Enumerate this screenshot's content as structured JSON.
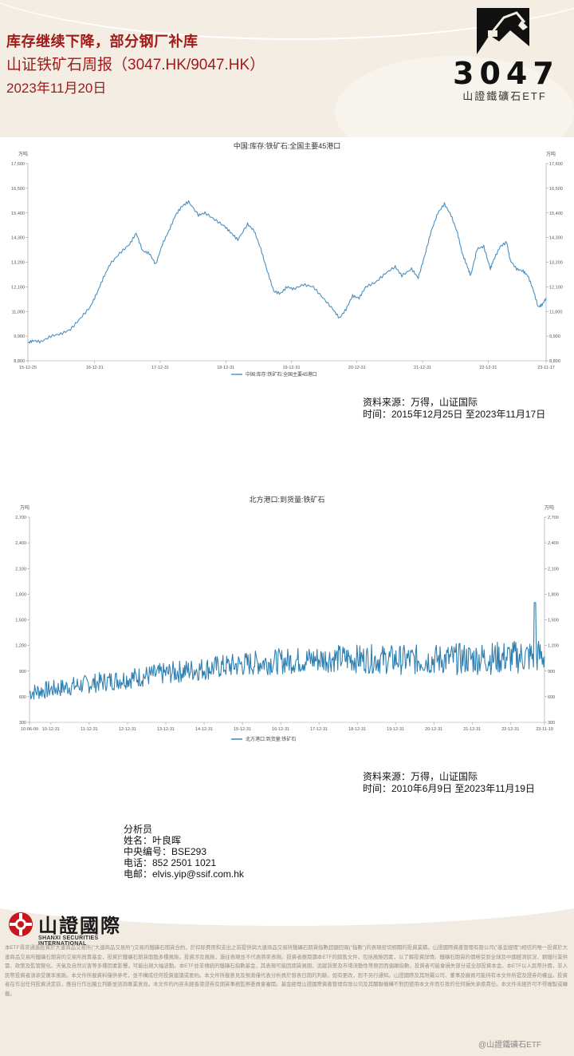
{
  "header": {
    "title": "库存继续下降，部分钢厂补库",
    "subtitle": "山证铁矿石周报（3047.HK/9047.HK）",
    "date": "2023年11月20日",
    "logo_code": "3047",
    "logo_name": "山證鐵礦石ETF"
  },
  "chart_data": [
    {
      "type": "line",
      "title": "中国:库存:铁矿石:全国主要45港口",
      "unit": "万吨",
      "legend": "中国:库存:铁矿石:全国主要45港口",
      "legend_position": "bottom",
      "grid": false,
      "color": "#4a90c2",
      "ylim": [
        8800,
        17600
      ],
      "yticks": [
        "8,800",
        "9,900",
        "11,000",
        "12,100",
        "13,200",
        "14,300",
        "15,400",
        "16,500",
        "17,600"
      ],
      "yticks_right": [
        "8,800",
        "9,900",
        "11,000",
        "12,100",
        "13,200",
        "14,300",
        "15,400",
        "16,500",
        "17,600"
      ],
      "xticks": [
        "15-12-25",
        "16-12-31",
        "17-12-31",
        "18-12-31",
        "19-12-31",
        "20-12-31",
        "21-12-31",
        "22-12-31",
        "23-11-17"
      ],
      "x_tick_positions": [
        0,
        1.017,
        2.017,
        3.017,
        4.017,
        5.017,
        6.017,
        7.017,
        7.9
      ],
      "x_range": [
        0,
        7.9
      ],
      "series": [
        {
          "values": [
            [
              0.0,
              9600
            ],
            [
              0.08,
              9700
            ],
            [
              0.2,
              9650
            ],
            [
              0.35,
              9900
            ],
            [
              0.5,
              10000
            ],
            [
              0.65,
              10200
            ],
            [
              0.8,
              10700
            ],
            [
              0.95,
              11200
            ],
            [
              1.05,
              11800
            ],
            [
              1.15,
              12500
            ],
            [
              1.25,
              13100
            ],
            [
              1.4,
              13600
            ],
            [
              1.55,
              14000
            ],
            [
              1.65,
              14500
            ],
            [
              1.75,
              13700
            ],
            [
              1.85,
              13600
            ],
            [
              1.95,
              13100
            ],
            [
              2.05,
              14000
            ],
            [
              2.15,
              14600
            ],
            [
              2.25,
              15300
            ],
            [
              2.35,
              15700
            ],
            [
              2.45,
              15900
            ],
            [
              2.6,
              15300
            ],
            [
              2.7,
              15400
            ],
            [
              2.85,
              15100
            ],
            [
              3.0,
              14800
            ],
            [
              3.1,
              14500
            ],
            [
              3.2,
              14200
            ],
            [
              3.35,
              14900
            ],
            [
              3.45,
              14600
            ],
            [
              3.55,
              13800
            ],
            [
              3.65,
              12800
            ],
            [
              3.75,
              11900
            ],
            [
              3.85,
              11800
            ],
            [
              3.95,
              12100
            ],
            [
              4.05,
              12000
            ],
            [
              4.2,
              12200
            ],
            [
              4.35,
              12100
            ],
            [
              4.5,
              11600
            ],
            [
              4.65,
              11100
            ],
            [
              4.75,
              10700
            ],
            [
              4.85,
              11100
            ],
            [
              4.95,
              11700
            ],
            [
              5.05,
              11600
            ],
            [
              5.15,
              12100
            ],
            [
              5.3,
              12300
            ],
            [
              5.45,
              12700
            ],
            [
              5.6,
              13000
            ],
            [
              5.7,
              12600
            ],
            [
              5.85,
              12900
            ],
            [
              5.95,
              12500
            ],
            [
              6.05,
              13500
            ],
            [
              6.15,
              14600
            ],
            [
              6.25,
              15400
            ],
            [
              6.35,
              15800
            ],
            [
              6.45,
              15300
            ],
            [
              6.55,
              14500
            ],
            [
              6.62,
              13600
            ],
            [
              6.7,
              13000
            ],
            [
              6.75,
              12600
            ],
            [
              6.85,
              13800
            ],
            [
              6.95,
              13900
            ],
            [
              7.05,
              12900
            ],
            [
              7.1,
              13300
            ],
            [
              7.2,
              13900
            ],
            [
              7.3,
              14100
            ],
            [
              7.35,
              13300
            ],
            [
              7.45,
              12900
            ],
            [
              7.55,
              12800
            ],
            [
              7.62,
              12600
            ],
            [
              7.7,
              12000
            ],
            [
              7.78,
              11200
            ],
            [
              7.84,
              11300
            ],
            [
              7.9,
              11600
            ]
          ]
        }
      ]
    },
    {
      "type": "line",
      "title": "北方港口:到货量:铁矿石",
      "unit": "万吨",
      "legend": "北方港口:到货量:铁矿石",
      "legend_position": "bottom",
      "grid": false,
      "color": "#2f7fb0",
      "ylim": [
        300,
        2700
      ],
      "yticks": [
        "300",
        "600",
        "900",
        "1,200",
        "1,500",
        "1,800",
        "2,100",
        "2,400",
        "2,700"
      ],
      "yticks_right": [
        "300",
        "600",
        "900",
        "1,200",
        "1,500",
        "1,800",
        "2,100",
        "2,400",
        "2,700"
      ],
      "xticks": [
        "10-06-09",
        "10-12-31",
        "11-12-31",
        "12-12-31",
        "13-12-31",
        "14-12-31",
        "15-12-31",
        "16-12-31",
        "17-12-31",
        "18-12-31",
        "19-12-31",
        "20-12-31",
        "21-12-31",
        "22-12-31",
        "23-11-19"
      ],
      "x_tick_positions": [
        0,
        0.56,
        1.56,
        2.56,
        3.56,
        4.56,
        5.56,
        6.56,
        7.56,
        8.56,
        9.56,
        10.56,
        11.56,
        12.56,
        13.45
      ],
      "x_range": [
        0,
        13.45
      ],
      "trend": [
        [
          0,
          650
        ],
        [
          2,
          780
        ],
        [
          4,
          900
        ],
        [
          6,
          1000
        ],
        [
          8,
          1050
        ],
        [
          10,
          1030
        ],
        [
          12,
          1050
        ],
        [
          13.45,
          1080
        ]
      ],
      "noise_amplitude": 170,
      "peak": [
        13.2,
        1700
      ]
    }
  ],
  "sources": [
    {
      "line1": "资料来源：万得，山证国际",
      "line2": "时间：2015年12月25日 至2023年11月17日"
    },
    {
      "line1": "资料来源：万得，山证国际",
      "line2": "时间：2010年6月9日 至2023年11月19日"
    }
  ],
  "analyst": {
    "heading": "分析员",
    "name": "姓名：叶良晖",
    "id": "中央编号：BSE293",
    "phone": "电话：852 2501 1021",
    "email": "电邮：elvis.yip@ssif.com.hk"
  },
  "footer": {
    "company_cn": "山證國際",
    "company_en": "SHANXI SECURITIES INTERNATIONAL",
    "disclaimer": "本ETF尋求通過投資於大連商品交易所(\"大連商品交易所\")交易的鐵礦石期貨合約，於扣除費用和支出之前提供與大連商品交易所鐵礦石期貨指數超額回報(\"指數\")的表現密切相關的投資業績。山證國際資產管理有限公司(\"基金經理\")相信的唯一投資於大連商品交易所鐵礦石期貨的交易所買賣基金，投資於鐵礦石期貨面臨多種風險。投資涉及風險，過往表現並不代表將來表現。投資者應閱讀本ETF的銷售文件，包括風險因素，以了解投資詳情。鐵礦石期貨的價格受到全球及中國經濟狀況、鋼鐵行業供需、政策及監管變化、天氣及自然災害等多種因素影響，可能出現大幅波動。本ETF並非傳統的鐵礦石指數基金，其表現可能因期貨展期、追蹤誤差及市場流動性等原因而偏離指數。投資者可能會損失部分或全部投資本金。本ETF以人民幣計價，非人民幣投資者須承受匯率風險。本文件所載資料僅供參考，並不構成任何投資建議或要約。本文件所載意見及預測僅代表分析員於發表日期的判斷，如有更改，恕不另行通知。山證國際及其附屬公司、董事及僱員可能持有本文件所提及證券的權益。投資者在作出任何投資決定前，應自行作出獨立判斷並諮詢專業意見。本文件的內容未經香港證券及期貨事務監察委員會審閱。基金經理山證國際資產管理有限公司及其關聯機構不對因使用本文件而引致的任何損失承擔責任。本文件未經許可不得複製或轉載。"
  },
  "watermark": "@山證鐵礦石ETF"
}
